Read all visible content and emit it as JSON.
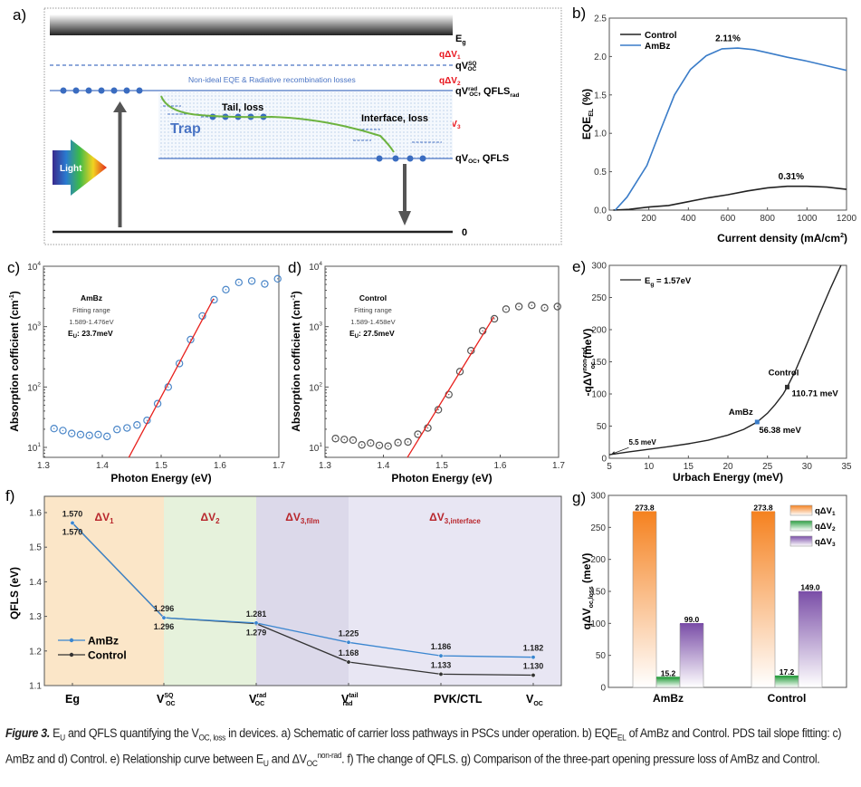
{
  "panels": {
    "a": {
      "label": "a)",
      "levels": {
        "eg": "E",
        "eg_sub": "g",
        "vsq": "qV",
        "vsq_sup": "SQ",
        "vsq_sub": "OC",
        "vrad": "qV",
        "vrad_sup": "rad",
        "vrad_sub": "OC",
        "vrad_qfls": ", QFLS",
        "vrad_qfls_sub": "rad",
        "voc": "qV",
        "voc_sub": "OC",
        "voc_qfls": ", QFLS",
        "zero": "0"
      },
      "losses": {
        "dv1": "qΔV",
        "dv1_sub": "1",
        "dv2": "qΔV",
        "dv2_sub": "2",
        "dv3": "qΔV",
        "dv3_sub": "3"
      },
      "non_ideal_text": "Non-ideal EQE & Radiative recombination losses",
      "tail_loss": "Tail, loss",
      "interface_loss": "Interface, loss",
      "trap": "Trap",
      "light": "Light",
      "colors": {
        "loss_red": "#e8141c",
        "level_blue": "#4a74c4",
        "dot_blue": "#3a6cc0",
        "green_path": "#6db33f",
        "trap_text": "#4a74c4"
      }
    }
  },
  "chart_data": [
    {
      "id": "b",
      "label": "b)",
      "type": "line",
      "xlabel": "Current density (mA/cm",
      "xlabel_sup": "2",
      "xlabel_end": ")",
      "ylabel": "EQE",
      "ylabel_sub": "EL",
      "ylabel_end": " (%)",
      "xlim": [
        0,
        1200
      ],
      "ylim": [
        0,
        2.5
      ],
      "xticks": [
        0,
        200,
        400,
        600,
        800,
        1000,
        1200
      ],
      "yticks": [
        "0.0",
        "0.5",
        "1.0",
        "1.5",
        "2.0",
        "2.5"
      ],
      "legend": "top-left",
      "series": [
        {
          "name": "Control",
          "color": "#222222",
          "x": [
            20,
            100,
            200,
            300,
            400,
            500,
            600,
            700,
            800,
            900,
            1000,
            1100,
            1200
          ],
          "y": [
            0.0,
            0.01,
            0.04,
            0.06,
            0.11,
            0.16,
            0.2,
            0.25,
            0.29,
            0.31,
            0.31,
            0.3,
            0.27
          ]
        },
        {
          "name": "AmBz",
          "color": "#3a7cc8",
          "x": [
            30,
            90,
            190,
            260,
            330,
            410,
            490,
            570,
            650,
            730,
            800,
            900,
            1000,
            1100,
            1200
          ],
          "y": [
            0.0,
            0.17,
            0.58,
            1.05,
            1.5,
            1.83,
            2.01,
            2.1,
            2.11,
            2.09,
            2.05,
            1.99,
            1.94,
            1.88,
            1.82
          ]
        }
      ],
      "annotations": [
        {
          "text": "2.11%",
          "x": 600,
          "y": 2.2
        },
        {
          "text": "0.31%",
          "x": 920,
          "y": 0.4
        }
      ]
    },
    {
      "id": "c",
      "label": "c)",
      "type": "scatter",
      "xlabel": "Photon Energy (eV)",
      "ylabel": "Absorption cofficient (cm",
      "ylabel_sup": "-1",
      "ylabel_end": ")",
      "xlim": [
        1.3,
        1.7
      ],
      "ylim_log10": [
        0.835,
        4
      ],
      "xticks": [
        "1.3",
        "1.4",
        "1.5",
        "1.6",
        "1.7"
      ],
      "yticks_exp": [
        1,
        2,
        3,
        4
      ],
      "color": "#4a86c8",
      "x": [
        1.318,
        1.333,
        1.348,
        1.363,
        1.378,
        1.393,
        1.408,
        1.425,
        1.442,
        1.459,
        1.476,
        1.494,
        1.512,
        1.531,
        1.55,
        1.57,
        1.59,
        1.61,
        1.632,
        1.654,
        1.676,
        1.698
      ],
      "y": [
        20.5,
        19,
        17,
        16.3,
        15.8,
        16.3,
        15.2,
        19.8,
        21,
        23.5,
        28,
        53,
        100,
        245,
        610,
        1500,
        2800,
        4100,
        5400,
        5700,
        5100,
        6200
      ],
      "fit": {
        "x": [
          1.445,
          1.589
        ],
        "y": [
          6.8,
          2900
        ],
        "color": "#e8201c"
      },
      "annotation": {
        "title": "AmBz",
        "line1": "Fitting range",
        "line2": "1.589-1.476eV",
        "eu_label": "E",
        "eu_sub": "U",
        "eu_value": ": 23.7meV"
      }
    },
    {
      "id": "d",
      "label": "d)",
      "type": "scatter",
      "xlabel": "Photon Energy (eV)",
      "ylabel": "Absorption cofficient (cm",
      "ylabel_sup": "-1",
      "ylabel_end": ")",
      "xlim": [
        1.3,
        1.7
      ],
      "ylim_log10": [
        0.835,
        4
      ],
      "xticks": [
        "1.3",
        "1.4",
        "1.5",
        "1.6",
        "1.7"
      ],
      "yticks_exp": [
        1,
        2,
        3,
        4
      ],
      "color": "#555555",
      "x": [
        1.318,
        1.333,
        1.348,
        1.363,
        1.378,
        1.393,
        1.408,
        1.425,
        1.442,
        1.459,
        1.476,
        1.494,
        1.512,
        1.531,
        1.55,
        1.57,
        1.59,
        1.61,
        1.632,
        1.654,
        1.676,
        1.698
      ],
      "y": [
        14,
        13.5,
        13.2,
        11,
        11.8,
        10.8,
        10.5,
        12,
        12.3,
        16.5,
        21,
        42,
        75,
        180,
        400,
        850,
        1350,
        1950,
        2150,
        2250,
        2050,
        2150
      ],
      "fit": {
        "x": [
          1.441,
          1.589
        ],
        "y": [
          6.8,
          1450
        ],
        "color": "#e8201c"
      },
      "annotation": {
        "title": "Control",
        "line1": "Fitting range",
        "line2": "1.589-1.458eV",
        "eu_label": "E",
        "eu_sub": "U",
        "eu_value": ": 27.5meV"
      }
    },
    {
      "id": "e",
      "label": "e)",
      "type": "line",
      "xlabel": "Urbach Energy (meV)",
      "ylabel": "-qΔV",
      "ylabel_sup": "non-rad",
      "ylabel_sub": "oc",
      "ylabel_end": " (meV)",
      "xlim": [
        5,
        35
      ],
      "ylim": [
        0,
        300
      ],
      "xticks": [
        5,
        10,
        15,
        20,
        25,
        30,
        35
      ],
      "yticks": [
        0,
        50,
        100,
        150,
        200,
        250,
        300
      ],
      "legend": "top-left",
      "legend_label": "E",
      "legend_sub": "g",
      "legend_end": " = 1.57eV",
      "series": [
        {
          "name": "Eg = 1.57eV",
          "color": "#222222",
          "x": [
            5,
            7.5,
            10,
            12.5,
            15,
            17.5,
            20,
            22,
            23.7,
            25,
            26,
            27,
            27.5,
            28.5,
            30,
            31.5,
            33,
            34.3
          ],
          "y": [
            5.5,
            10,
            14,
            18,
            22.5,
            28,
            36,
            45,
            56.38,
            70,
            84,
            100,
            110.71,
            135,
            178,
            222,
            265,
            300
          ]
        }
      ],
      "points": [
        {
          "name": "AmBz",
          "x": 23.7,
          "y": 56.38,
          "value_label": "56.38 meV",
          "color": "#3a7cc8"
        },
        {
          "name": "Control",
          "x": 27.5,
          "y": 110.71,
          "value_label": "110.71 meV",
          "color": "#333333"
        }
      ],
      "annotations": [
        {
          "text": "5.5 meV",
          "x": 7,
          "y": 18
        }
      ]
    },
    {
      "id": "f",
      "label": "f)",
      "type": "line",
      "ylabel": "QFLS (eV)",
      "ylim": [
        1.1,
        1.65
      ],
      "yticks": [
        "1.1",
        "1.2",
        "1.3",
        "1.4",
        "1.5",
        "1.6"
      ],
      "categories": [
        {
          "main": "Eg",
          "sup": "",
          "sub": ""
        },
        {
          "main": "V",
          "sup": "SQ",
          "sub": "OC"
        },
        {
          "main": "V",
          "sup": "rad",
          "sub": "OC"
        },
        {
          "main": "V",
          "sup": "tail",
          "sub": "rad"
        },
        {
          "main": "PVK/CTL",
          "sup": "",
          "sub": ""
        },
        {
          "main": "V",
          "sup": "",
          "sub": "OC"
        }
      ],
      "regions": [
        {
          "label": "ΔV",
          "sub": "1",
          "from": 0,
          "to": 1,
          "color": "#fbe6c8"
        },
        {
          "label": "ΔV",
          "sub": "2",
          "from": 1,
          "to": 2,
          "color": "#e6f2dc"
        },
        {
          "label": "ΔV",
          "sub": "3,film",
          "from": 2,
          "to": 3,
          "color": "#dcd9ea"
        },
        {
          "label": "ΔV",
          "sub": "3,interface",
          "from": 3,
          "to": 5,
          "color": "#e8e6f3"
        }
      ],
      "region_label_color": "#b8262c",
      "legend": "bottom-left",
      "series": [
        {
          "name": "AmBz",
          "color": "#3a86d0",
          "values": [
            1.57,
            1.296,
            1.281,
            1.225,
            1.186,
            1.182
          ],
          "labels": [
            "1.570",
            "1.296",
            "1.281",
            "1.225",
            "1.186",
            "1.182"
          ]
        },
        {
          "name": "Control",
          "color": "#333333",
          "values": [
            1.57,
            1.296,
            1.279,
            1.168,
            1.133,
            1.13
          ],
          "labels": [
            "1.570",
            "1.296",
            "1.279",
            "1.168",
            "1.133",
            "1.130"
          ]
        }
      ]
    },
    {
      "id": "g",
      "label": "g)",
      "type": "bar",
      "ylabel": "qΔV",
      "ylabel_sub": "oc,loss",
      "ylabel_end": " (meV)",
      "ylim": [
        0,
        300
      ],
      "yticks": [
        0,
        50,
        100,
        150,
        200,
        250,
        300
      ],
      "categories": [
        "AmBz",
        "Control"
      ],
      "legend": "top-right",
      "series": [
        {
          "name": "qΔV",
          "sub": "1",
          "color": "#f58220",
          "values": [
            273.8,
            273.8
          ],
          "labels": [
            "273.8",
            "273.8"
          ]
        },
        {
          "name": "qΔV",
          "sub": "2",
          "color": "#2ea043",
          "values": [
            15.2,
            17.2
          ],
          "labels": [
            "15.2",
            "17.2"
          ]
        },
        {
          "name": "qΔV",
          "sub": "3",
          "color": "#7b4fa8",
          "values": [
            99.0,
            149.0
          ],
          "labels": [
            "99.0",
            "149.0"
          ]
        }
      ]
    }
  ],
  "caption": {
    "fig": "Figure 3.",
    "t1": " E",
    "t1_sub": "U",
    "t2": " and QFLS quantifying the V",
    "t2_sub": "OC, loss",
    "t3": " in devices. a) Schematic of carrier loss pathways in PSCs under operation. b) EQE",
    "t3_sub": "EL",
    "t4": " of AmBz and Control. PDS tail slope fitting: c) AmBz and d) Control. e) Relationship curve between E",
    "t4_sub": "U",
    "t5": " and ΔV",
    "t5_sub": "OC",
    "t5_sup": "non-rad",
    "t6": ". f) The change of QFLS. g) Comparison of the three-part opening pressure loss of AmBz and Control."
  }
}
